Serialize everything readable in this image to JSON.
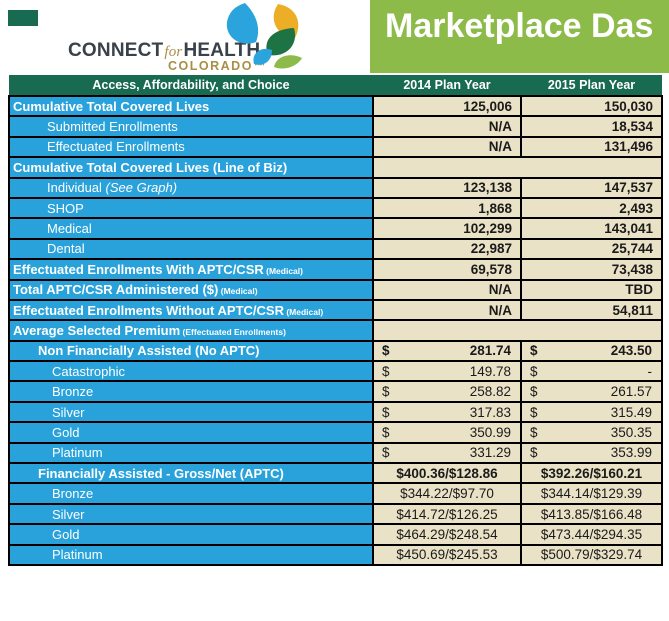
{
  "colors": {
    "accent_green_dark": "#186A50",
    "accent_green_light": "#8CBB4A",
    "row_blue": "#29A2DB",
    "cell_beige": "#EAE2C6",
    "logo_charcoal": "#39414A",
    "logo_gold": "#A98F45",
    "leaf_blue": "#2BA3DC",
    "leaf_yellow": "#EBAE26",
    "leaf_dark_green": "#1E7345",
    "leaf_light_green": "#8CBB4A"
  },
  "logo": {
    "connect": "CONNECT",
    "for_word": "for",
    "health": "HEALTH",
    "colorado": "COLORADO™"
  },
  "banner": {
    "title": "Marketplace Das"
  },
  "table": {
    "currency_symbol": "$",
    "header": {
      "label_col": "Access, Affordability, and Choice",
      "year_2014": "2014 Plan Year",
      "year_2015": "2015 Plan Year"
    },
    "rows": [
      {
        "label": "Cumulative Total Covered Lives",
        "indent": 0,
        "bold": true,
        "type": "number",
        "v2014": "125,006",
        "v2015": "150,030"
      },
      {
        "label": "Submitted Enrollments",
        "indent": 1,
        "bold": false,
        "type": "number",
        "v2014": "N/A",
        "v2015": "18,534"
      },
      {
        "label": "Effectuated Enrollments",
        "indent": 1,
        "bold": false,
        "type": "number",
        "v2014": "N/A",
        "v2015": "131,496"
      },
      {
        "label": "Cumulative Total Covered Lives (Line of Biz)",
        "indent": 0,
        "bold": true,
        "type": "blank",
        "v2014": "",
        "v2015": ""
      },
      {
        "label": "Individual",
        "italic_note": "(See Graph)",
        "indent": 1,
        "bold": false,
        "type": "number",
        "v2014": "123,138",
        "v2015": "147,537"
      },
      {
        "label": "SHOP",
        "indent": 1,
        "bold": false,
        "type": "number",
        "v2014": "1,868",
        "v2015": "2,493"
      },
      {
        "label": "Medical",
        "indent": 1,
        "bold": false,
        "type": "number",
        "v2014": "102,299",
        "v2015": "143,041"
      },
      {
        "label": "Dental",
        "indent": 1,
        "bold": false,
        "type": "number",
        "v2014": "22,987",
        "v2015": "25,744"
      },
      {
        "label": "Effectuated Enrollments With APTC/CSR",
        "small_note": "(Medical)",
        "indent": 0,
        "bold": true,
        "type": "number",
        "v2014": "69,578",
        "v2015": "73,438"
      },
      {
        "label": "Total APTC/CSR Administered ($)",
        "small_note": "(Medical)",
        "indent": 0,
        "bold": true,
        "type": "number",
        "v2014": "N/A",
        "v2015": "TBD"
      },
      {
        "label": "Effectuated Enrollments Without APTC/CSR",
        "small_note": "(Medical)",
        "indent": 0,
        "bold": true,
        "type": "number",
        "v2014": "N/A",
        "v2015": "54,811"
      },
      {
        "label": "Average Selected Premium",
        "small_note": "(Effectuated Enrollments)",
        "indent": 0,
        "bold": true,
        "type": "blank",
        "v2014": "",
        "v2015": ""
      },
      {
        "label": "Non Financially Assisted (No APTC)",
        "indent": 1,
        "bold": true,
        "type": "acct",
        "bold_value": true,
        "v2014": "281.74",
        "v2015": "243.50"
      },
      {
        "label": "Catastrophic",
        "indent": 2,
        "bold": false,
        "type": "acct",
        "v2014": "149.78",
        "v2015": "-"
      },
      {
        "label": "Bronze",
        "indent": 2,
        "bold": false,
        "type": "acct",
        "v2014": "258.82",
        "v2015": "261.57"
      },
      {
        "label": "Silver",
        "indent": 2,
        "bold": false,
        "type": "acct",
        "v2014": "317.83",
        "v2015": "315.49"
      },
      {
        "label": "Gold",
        "indent": 2,
        "bold": false,
        "type": "acct",
        "v2014": "350.99",
        "v2015": "350.35"
      },
      {
        "label": "Platinum",
        "indent": 2,
        "bold": false,
        "type": "acct",
        "v2014": "331.29",
        "v2015": "353.99"
      },
      {
        "label": "Financially Assisted - Gross/Net (APTC)",
        "indent": 1,
        "bold": true,
        "type": "center",
        "bold_value": true,
        "v2014": "$400.36/$128.86",
        "v2015": "$392.26/$160.21"
      },
      {
        "label": "Bronze",
        "indent": 2,
        "bold": false,
        "type": "center",
        "v2014": "$344.22/$97.70",
        "v2015": "$344.14/$129.39"
      },
      {
        "label": "Silver",
        "indent": 2,
        "bold": false,
        "type": "center",
        "v2014": "$414.72/$126.25",
        "v2015": "$413.85/$166.48"
      },
      {
        "label": "Gold",
        "indent": 2,
        "bold": false,
        "type": "center",
        "v2014": "$464.29/$248.54",
        "v2015": "$473.44/$294.35"
      },
      {
        "label": "Platinum",
        "indent": 2,
        "bold": false,
        "type": "center",
        "v2014": "$450.69/$245.53",
        "v2015": "$500.79/$329.74"
      }
    ]
  }
}
